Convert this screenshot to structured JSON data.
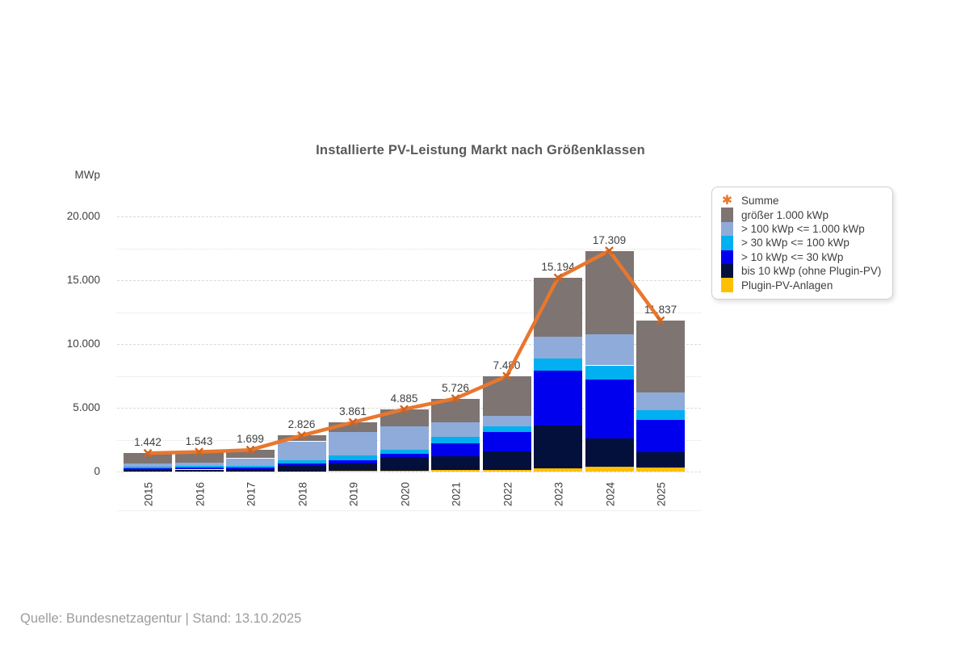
{
  "title": "Installierte PV-Leistung Markt nach Größenklassen",
  "y_axis_unit": "MWp",
  "footer_text": "Quelle: Bundesnetzagentur | Stand: 13.10.2025",
  "colors": {
    "line": "#e8772e",
    "line_marker": "#d06420",
    "grid_major": "#d9d9d9",
    "grid_minor": "#e0e0e0",
    "text": "#3f3f3f",
    "title_text": "#595959"
  },
  "legend": {
    "position": "right",
    "items": [
      {
        "label": "Summe",
        "type": "line-marker",
        "color": "#e8772e",
        "icon": "burst-marker-icon",
        "glyph": "✱"
      },
      {
        "label": "größer 1.000 kWp",
        "type": "box",
        "color": "#7e7472"
      },
      {
        "label": "> 100 kWp <= 1.000 kWp",
        "type": "box",
        "color": "#8fabd9"
      },
      {
        "label": "> 30 kWp <= 100 kWp",
        "type": "box",
        "color": "#00b0f0"
      },
      {
        "label": "> 10 kWp <= 30 kWp",
        "type": "box",
        "color": "#0000ee"
      },
      {
        "label": "bis 10 kWp (ohne Plugin-PV)",
        "type": "box",
        "color": "#04103c"
      },
      {
        "label": "Plugin-PV-Anlagen",
        "type": "box",
        "color": "#ffc000"
      }
    ]
  },
  "chart_data": {
    "type": "bar",
    "stacked": true,
    "title": "Installierte PV-Leistung Markt nach Größenklassen",
    "ylabel": "MWp",
    "xlabel": "",
    "categories": [
      "2015",
      "2016",
      "2017",
      "2018",
      "2019",
      "2020",
      "2021",
      "2022",
      "2023",
      "2024",
      "2025"
    ],
    "series": [
      {
        "name": "Plugin-PV-Anlagen",
        "color": "#ffc000",
        "values": [
          0,
          0,
          0,
          0,
          60,
          80,
          120,
          130,
          250,
          380,
          340
        ]
      },
      {
        "name": "bis 10 kWp (ohne Plugin-PV)",
        "color": "#04103c",
        "values": [
          130,
          160,
          190,
          420,
          560,
          1040,
          1060,
          1470,
          3350,
          2240,
          1160
        ]
      },
      {
        "name": "> 10 kWp <= 30 kWp",
        "color": "#0000ee",
        "values": [
          130,
          160,
          160,
          220,
          250,
          275,
          1030,
          1520,
          4330,
          4600,
          2530
        ]
      },
      {
        "name": "> 30 kWp <= 100 kWp",
        "color": "#00b0f0",
        "values": [
          100,
          125,
          125,
          250,
          400,
          320,
          500,
          420,
          950,
          1100,
          800
        ]
      },
      {
        "name": "> 100 kWp <= 1.000 kWp",
        "color": "#8fabd9",
        "values": [
          250,
          250,
          570,
          1480,
          1820,
          1840,
          1180,
          840,
          1680,
          2420,
          1370
        ]
      },
      {
        "name": "größer 1.000 kWp",
        "color": "#7e7472",
        "values": [
          832,
          848,
          654,
          456,
          771,
          1330,
          1836,
          3100,
          4634,
          6569,
          5637
        ]
      }
    ],
    "line_series": {
      "name": "Summe",
      "color": "#e8772e",
      "marker": "x",
      "marker_color": "#d06420",
      "values": [
        1442,
        1543,
        1699,
        2826,
        3861,
        4885,
        5726,
        7480,
        15194,
        17309,
        11837
      ]
    },
    "total_labels": [
      "1.442",
      "1.543",
      "1.699",
      "2.826",
      "3.861",
      "4.885",
      "5.726",
      "7.480",
      "15.194",
      "17.309",
      "11.837"
    ],
    "ylim": [
      0,
      22500
    ],
    "yticks": [
      {
        "value": 0,
        "label": "0"
      },
      {
        "value": 5000,
        "label": "5.000"
      },
      {
        "value": 10000,
        "label": "10.000"
      },
      {
        "value": 15000,
        "label": "15.000"
      },
      {
        "value": 20000,
        "label": "20.000"
      }
    ],
    "minor_yticks": [
      2500,
      7500,
      12500,
      17500
    ],
    "grid": "major-dashed, minor-dotted",
    "legend_position": "right"
  }
}
